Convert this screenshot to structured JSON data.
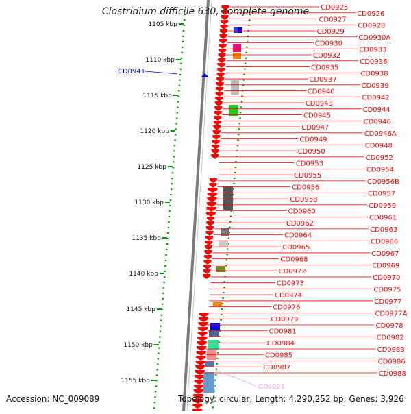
{
  "title": "Clostridium difficile 630, complete genome",
  "accession_text": "Accession: NC_009089",
  "summary_text": "Topology: circular; Length: 4,290,252 bp; Genes: 3,926",
  "colors": {
    "gene": "#ff0000",
    "label_line": "#ff0000",
    "rna": "#f6a6c8",
    "minus": "#0000cc",
    "ruler": "#009900",
    "backbone": "#7a7a7a"
  },
  "ruler_labels": [
    "1105 kbp",
    "1110 kbp",
    "1115 kbp",
    "1120 kbp",
    "1125 kbp",
    "1130 kbp",
    "1135 kbp",
    "1140 kbp",
    "1145 kbp",
    "1150 kbp",
    "1155 kbp"
  ],
  "minus_strand_labels": [
    "CD0941"
  ],
  "gene_labels": [
    "CD0925",
    "CD0926",
    "CD0927",
    "CD0928",
    "CD0929",
    "CD0930A",
    "CD0930",
    "CD0933",
    "CD0932",
    "CD0936",
    "CD0935",
    "CD0938",
    "CD0937",
    "CD0939",
    "CD0940",
    "CD0942",
    "CD0943",
    "CD0944",
    "CD0945",
    "CD0946",
    "CD0947",
    "CD0946A",
    "CD0949",
    "CD0948",
    "CD0950",
    "CD0952",
    "CD0953",
    "CD0954",
    "CD0955",
    "CD0956B",
    "CD0956",
    "CD0957",
    "CD0958",
    "CD0959",
    "CD0960",
    "CD0961",
    "CD0962",
    "CD0963",
    "CD0964",
    "CD0966",
    "CD0965",
    "CD0967",
    "CD0968",
    "CD0969",
    "CD0972",
    "CD0970",
    "CD0973",
    "CD0975",
    "CD0974",
    "CD0977",
    "CD0976",
    "CD0977A",
    "CD0979",
    "CD0978",
    "CD0981",
    "CD0982",
    "CD0984",
    "CD0983",
    "CD0985",
    "CD0986",
    "CD0987",
    "CD0988"
  ],
  "rna_labels": [
    "CDs021"
  ]
}
